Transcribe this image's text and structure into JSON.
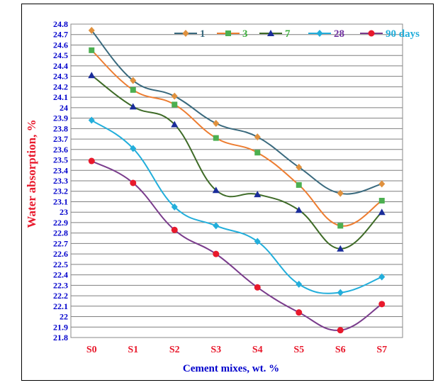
{
  "colors": {
    "frame_border": "#000000",
    "plot_border": "#888888",
    "grid": "#7f7f7f",
    "tick_label_y": "#0000CC",
    "tick_label_x": "#E8192C",
    "xlabel": "#0000CC",
    "ylabel": "#E8192C"
  },
  "chart_data": {
    "type": "line",
    "title": "",
    "xlabel": "Cement mixes, wt. %",
    "ylabel": "Water absorption, %",
    "categories": [
      "S0",
      "S1",
      "S2",
      "S3",
      "S4",
      "S5",
      "S6",
      "S7"
    ],
    "ylim": [
      21.8,
      24.8
    ],
    "ytick_step": 0.1,
    "yticks": [
      "21.8",
      "21.9",
      "22",
      "22.1",
      "22.2",
      "22.3",
      "22.4",
      "22.5",
      "22.6",
      "22.7",
      "22.8",
      "22.9",
      "23",
      "23.1",
      "23.2",
      "23.3",
      "23.4",
      "23.5",
      "23.6",
      "23.7",
      "23.8",
      "23.9",
      "24",
      "24.1",
      "24.2",
      "24.3",
      "24.4",
      "24.5",
      "24.6",
      "24.7",
      "24.8"
    ],
    "grid": true,
    "smooth": true,
    "legend_position": "top-right",
    "series": [
      {
        "name": "1",
        "color": "#3A6A7E",
        "marker": "diamond",
        "marker_color": "#E0913E",
        "text_color": "#3A6A7E",
        "values": [
          24.74,
          24.26,
          24.11,
          23.85,
          23.72,
          23.43,
          23.18,
          23.27
        ]
      },
      {
        "name": "3",
        "color": "#ED7D31",
        "marker": "square",
        "marker_color": "#4CAF50",
        "text_color": "#3CAF3C",
        "values": [
          24.55,
          24.17,
          24.03,
          23.71,
          23.57,
          23.26,
          22.87,
          23.11
        ]
      },
      {
        "name": "7",
        "color": "#3E6B27",
        "marker": "triangle",
        "marker_color": "#1A2D9A",
        "text_color": "#3CAF3C",
        "values": [
          24.31,
          24.01,
          23.84,
          23.21,
          23.17,
          23.02,
          22.65,
          23.0
        ]
      },
      {
        "name": "28",
        "color": "#22AEDB",
        "marker": "diamond",
        "marker_color": "#22AEDB",
        "text_color": "#7030A0",
        "values": [
          23.88,
          23.61,
          23.05,
          22.87,
          22.72,
          22.31,
          22.23,
          22.38
        ]
      },
      {
        "name": "90 days",
        "color": "#7A3C8C",
        "marker": "circle",
        "marker_color": "#E8192C",
        "text_color": "#22AEDB",
        "values": [
          23.49,
          23.28,
          22.83,
          22.6,
          22.28,
          22.04,
          21.87,
          22.12
        ]
      }
    ]
  }
}
